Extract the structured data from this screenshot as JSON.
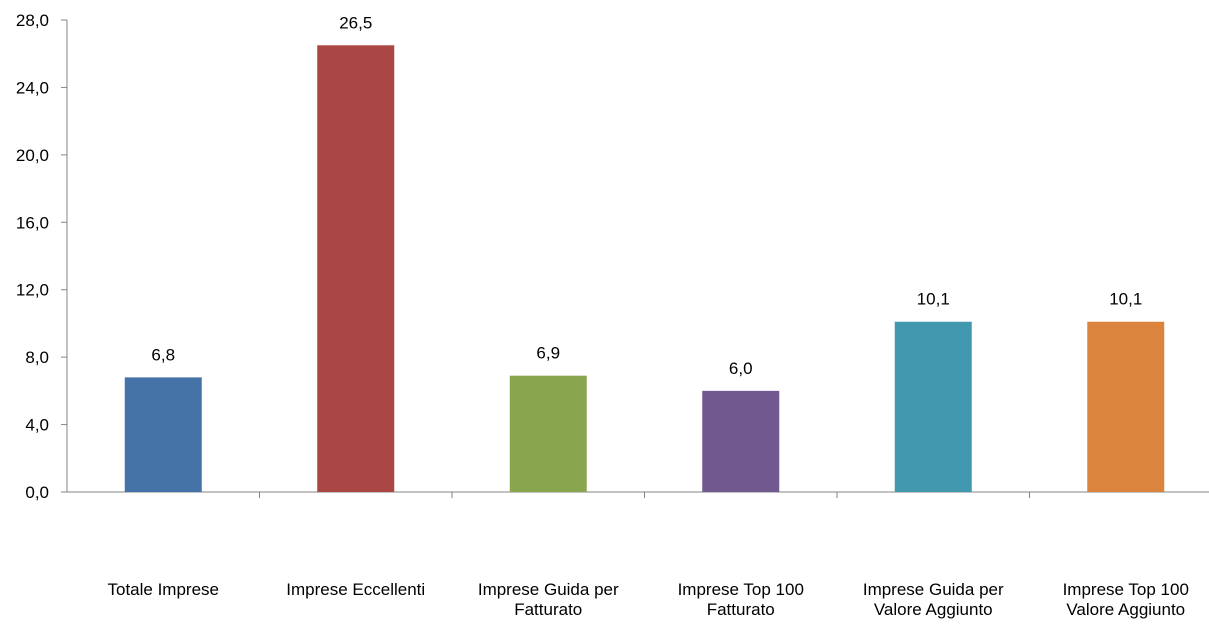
{
  "chart_data": {
    "type": "bar",
    "categories": [
      [
        "Totale Imprese"
      ],
      [
        "Imprese Eccellenti"
      ],
      [
        "Imprese Guida per",
        "Fatturato"
      ],
      [
        "Imprese Top 100",
        "Fatturato"
      ],
      [
        "Imprese Guida per",
        "Valore Aggiunto"
      ],
      [
        "Imprese Top 100",
        "Valore Aggiunto"
      ]
    ],
    "values": [
      6.8,
      26.5,
      6.9,
      6.0,
      10.1,
      10.1
    ],
    "value_labels": [
      "6,8",
      "26,5",
      "6,9",
      "6,0",
      "10,1",
      "10,1"
    ],
    "colors": [
      "#4572A7",
      "#AA4643",
      "#89A54E",
      "#71588F",
      "#4198AF",
      "#DB843D"
    ],
    "title": "",
    "xlabel": "",
    "ylabel": "",
    "ylim": [
      0,
      28
    ],
    "y_ticks": [
      0,
      4,
      8,
      12,
      16,
      20,
      24,
      28
    ],
    "y_tick_labels": [
      "0,0",
      "4,0",
      "8,0",
      "12,0",
      "16,0",
      "20,0",
      "24,0",
      "28,0"
    ],
    "grid": false,
    "legend": "none"
  }
}
